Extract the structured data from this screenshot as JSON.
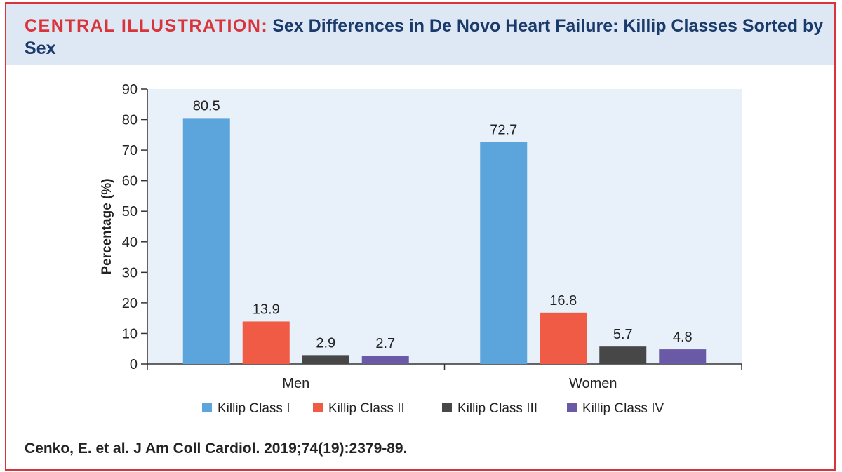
{
  "header": {
    "label": "CENTRAL ILLUSTRATION:",
    "title": "Sex Differences in De Novo Heart Failure: Killip Classes Sorted by Sex"
  },
  "citation": "Cenko, E. et al. J Am Coll Cardiol. 2019;74(19):2379-89.",
  "colors": {
    "accent": "#d9343a",
    "title": "#1a3a6b",
    "header_bg": "#dde8f4",
    "plot_bg": "#e8f1fa"
  },
  "chart_data": {
    "type": "bar",
    "title": "",
    "xlabel": "",
    "ylabel": "Percentage (%)",
    "ylim": [
      0,
      90
    ],
    "yticks": [
      0,
      10,
      20,
      30,
      40,
      50,
      60,
      70,
      80,
      90
    ],
    "categories": [
      "Men",
      "Women"
    ],
    "series": [
      {
        "name": "Killip Class I",
        "color": "#5ba4dc",
        "values": [
          80.5,
          72.7
        ],
        "labels": [
          "80.5",
          "72.7"
        ]
      },
      {
        "name": "Killip Class II",
        "color": "#ef5b45",
        "values": [
          13.9,
          16.8
        ],
        "labels": [
          "13.9",
          "16.8"
        ]
      },
      {
        "name": "Killip Class III",
        "color": "#474747",
        "values": [
          2.9,
          5.7
        ],
        "labels": [
          "2.9",
          "5.7"
        ]
      },
      {
        "name": "Killip Class IV",
        "color": "#6a5aa6",
        "values": [
          2.7,
          4.8
        ],
        "labels": [
          "2.7",
          "4.8"
        ]
      }
    ],
    "legend_position": "bottom"
  }
}
